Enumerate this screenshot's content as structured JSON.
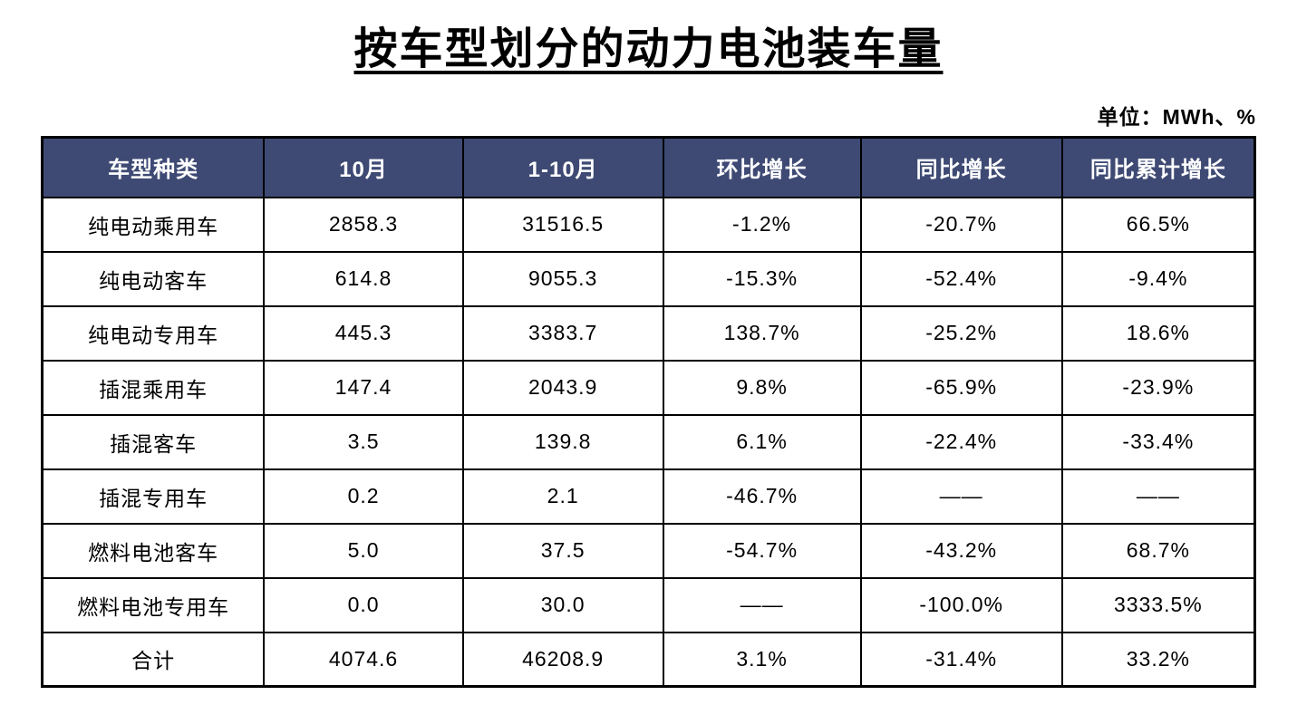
{
  "title": "按车型划分的动力电池装车量",
  "unit_label": "单位：MWh、%",
  "colors": {
    "header_bg": "#3E4A74",
    "header_text": "#FFFFFF",
    "border": "#000000",
    "body_text": "#000000",
    "page_bg": "#FFFFFF"
  },
  "chart_data": {
    "type": "table",
    "title": "按车型划分的动力电池装车量",
    "unit": "MWh、%",
    "columns": [
      "车型种类",
      "10月",
      "1-10月",
      "环比增长",
      "同比增长",
      "同比累计增长"
    ],
    "rows": [
      [
        "纯电动乘用车",
        "2858.3",
        "31516.5",
        "-1.2%",
        "-20.7%",
        "66.5%"
      ],
      [
        "纯电动客车",
        "614.8",
        "9055.3",
        "-15.3%",
        "-52.4%",
        "-9.4%"
      ],
      [
        "纯电动专用车",
        "445.3",
        "3383.7",
        "138.7%",
        "-25.2%",
        "18.6%"
      ],
      [
        "插混乘用车",
        "147.4",
        "2043.9",
        "9.8%",
        "-65.9%",
        "-23.9%"
      ],
      [
        "插混客车",
        "3.5",
        "139.8",
        "6.1%",
        "-22.4%",
        "-33.4%"
      ],
      [
        "插混专用车",
        "0.2",
        "2.1",
        "-46.7%",
        "——",
        "——"
      ],
      [
        "燃料电池客车",
        "5.0",
        "37.5",
        "-54.7%",
        "-43.2%",
        "68.7%"
      ],
      [
        "燃料电池专用车",
        "0.0",
        "30.0",
        "——",
        "-100.0%",
        "3333.5%"
      ],
      [
        "合计",
        "4074.6",
        "46208.9",
        "3.1%",
        "-31.4%",
        "33.2%"
      ]
    ]
  }
}
